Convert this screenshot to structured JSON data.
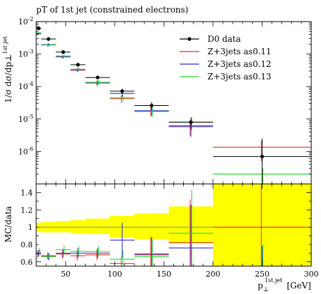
{
  "chart_data": {
    "type": "line",
    "title": "pT of 1st jet (constrained electrons)",
    "top_ylabel": "1/σ dσ/dp⊥",
    "top_ylabel_sup": "1st jet",
    "bottom_ylabel": "MC/data",
    "xlabel_main": "p",
    "xlabel_sub": "⊥",
    "xlabel_sup": "1st jet",
    "xlabel_unit": "[GeV]",
    "xlim": [
      20,
      300
    ],
    "xticks": [
      50,
      100,
      150,
      200,
      250,
      300
    ],
    "top_ylim_log10": [
      -7,
      -2
    ],
    "top_yticks": [
      {
        "label_base": "10",
        "label_exp": "-2",
        "log": -2
      },
      {
        "label_base": "10",
        "label_exp": "-3",
        "log": -3
      },
      {
        "label_base": "10",
        "label_exp": "-4",
        "log": -4
      },
      {
        "label_base": "10",
        "label_exp": "-5",
        "log": -5
      },
      {
        "label_base": "10",
        "label_exp": "-6",
        "log": -6
      }
    ],
    "bottom_ylim": [
      0.55,
      1.5
    ],
    "bottom_yticks": [
      {
        "label": "0.6",
        "v": 0.6
      },
      {
        "label": "0.8",
        "v": 0.8
      },
      {
        "label": "1",
        "v": 1.0
      },
      {
        "label": "1.2",
        "v": 1.2
      },
      {
        "label": "1.4",
        "v": 1.4
      }
    ],
    "bins": [
      [
        20,
        25
      ],
      [
        25,
        40
      ],
      [
        40,
        55
      ],
      [
        55,
        70
      ],
      [
        70,
        95
      ],
      [
        95,
        120
      ],
      [
        120,
        155
      ],
      [
        155,
        200
      ],
      [
        200,
        300
      ]
    ],
    "legend_position": "top-right",
    "data_series": {
      "name": "D0 data",
      "color": "#000000",
      "x": [
        22.5,
        32.5,
        47.5,
        62.5,
        82.5,
        107.5,
        137.5,
        177.5,
        250
      ],
      "y": [
        0.0062,
        0.0029,
        0.00115,
        0.00047,
        0.00019,
        7.2e-05,
        2.6e-05,
        8e-06,
        7e-07
      ],
      "y_low": [
        0.0058,
        0.0027,
        0.00107,
        0.00043,
        0.000165,
        5.8e-05,
        1.9e-05,
        5e-06,
        1e-07
      ],
      "y_high": [
        0.0066,
        0.0031,
        0.00123,
        0.00051,
        0.000215,
        8.6e-05,
        3.3e-05,
        1.1e-05,
        2.5e-06
      ]
    },
    "series": [
      {
        "name": "Z+3jets as0.11",
        "color": "#e8282c",
        "values": [
          0.0042,
          0.0019,
          0.00082,
          0.00032,
          0.000128,
          4.2e-05,
          1.75e-05,
          6.2e-06,
          1.35e-06
        ],
        "err_low": [
          0.0039,
          0.0017,
          0.00073,
          0.00028,
          0.000105,
          3.1e-05,
          1.2e-05,
          3e-06,
          5e-07
        ],
        "err_high": [
          0.0045,
          0.0021,
          0.00091,
          0.00036,
          0.00015,
          5.3e-05,
          2.3e-05,
          9e-06,
          2.2e-06
        ],
        "ratio": [
          0.69,
          0.67,
          0.69,
          0.67,
          0.68,
          0.58,
          0.68,
          0.82,
          1.0
        ],
        "ratio_err": [
          0.04,
          0.04,
          0.05,
          0.06,
          0.06,
          0.08,
          0.2,
          0.5,
          0.9
        ]
      },
      {
        "name": "Z+3jets as0.12",
        "color": "#2b2bd8",
        "values": [
          0.0043,
          0.00195,
          0.00082,
          0.00033,
          0.000133,
          6.1e-05,
          1.8e-05,
          5.8e-06,
          2e-07
        ],
        "err_low": [
          0.004,
          0.00175,
          0.00073,
          0.00029,
          0.00011,
          4.8e-05,
          1.25e-05,
          2.8e-06,
          1e-07
        ],
        "err_high": [
          0.0046,
          0.00215,
          0.00091,
          0.00037,
          0.000155,
          7.4e-05,
          2.35e-05,
          8.8e-06,
          3e-07
        ],
        "ratio": [
          0.7,
          0.66,
          0.7,
          0.7,
          0.7,
          0.85,
          0.69,
          0.76,
          0.28
        ],
        "ratio_err": [
          0.04,
          0.04,
          0.05,
          0.06,
          0.06,
          0.2,
          0.2,
          0.5,
          0.5
        ]
      },
      {
        "name": "Z+3jets as0.13",
        "color": "#22dd22",
        "values": [
          0.0045,
          0.0019,
          0.00088,
          0.00034,
          0.000135,
          4.5e-05,
          1.7e-05,
          8e-06,
          2e-07
        ],
        "err_low": [
          0.0042,
          0.0017,
          0.00079,
          0.0003,
          0.000112,
          3.4e-05,
          1.15e-05,
          4.5e-06,
          1e-07
        ],
        "err_high": [
          0.0048,
          0.0021,
          0.00097,
          0.00038,
          0.000158,
          5.6e-05,
          2.25e-05,
          1.15e-05,
          3e-07
        ],
        "ratio": [
          0.72,
          0.66,
          0.74,
          0.72,
          0.72,
          0.63,
          0.66,
          0.93,
          0.3
        ],
        "ratio_err": [
          0.04,
          0.04,
          0.05,
          0.06,
          0.06,
          0.1,
          0.2,
          0.5,
          0.5
        ]
      }
    ],
    "data_uncertainty_band": {
      "color": "#ffff00",
      "low": [
        0.95,
        0.94,
        0.94,
        0.93,
        0.92,
        0.88,
        0.86,
        0.82,
        0.55
      ],
      "high": [
        1.05,
        1.06,
        1.07,
        1.08,
        1.1,
        1.13,
        1.16,
        1.24,
        1.5
      ]
    }
  }
}
